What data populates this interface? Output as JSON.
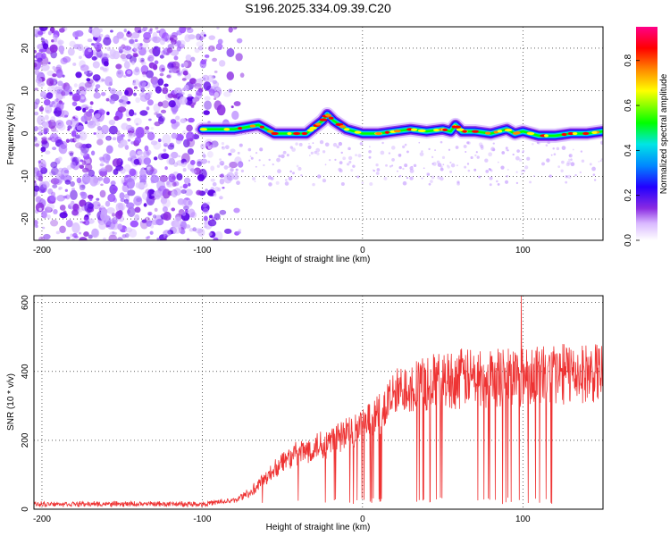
{
  "chart_data": [
    {
      "type": "heatmap",
      "title": "S196.2025.334.09.39.C20",
      "xlabel": "Height of straight line (km)",
      "ylabel": "Frequency (Hz)",
      "xlim": [
        -205,
        150
      ],
      "ylim": [
        -25,
        25
      ],
      "xticks": [
        -200,
        -100,
        0,
        100
      ],
      "yticks": [
        -20,
        -10,
        0,
        10,
        20
      ],
      "colorbar": {
        "label": "Normalized spectral amplitude",
        "range": [
          0,
          0.95
        ],
        "ticks": [
          0.0,
          0.2,
          0.4,
          0.6,
          0.8
        ],
        "colormap": [
          "#ffffff",
          "#d9b8ff",
          "#8a2be2",
          "#2200ff",
          "#0088ff",
          "#00e5e5",
          "#00ff00",
          "#ffff00",
          "#ff8800",
          "#ff0000",
          "#ff0088"
        ]
      },
      "ridge": {
        "x": [
          -100,
          -80,
          -65,
          -55,
          -45,
          -35,
          -30,
          -25,
          -22,
          -18,
          -10,
          0,
          10,
          20,
          30,
          40,
          50,
          55,
          58,
          62,
          70,
          80,
          90,
          95,
          100,
          110,
          120,
          130,
          140,
          150
        ],
        "freq": [
          1,
          1,
          2,
          0,
          0,
          0,
          1.5,
          3,
          4.5,
          3,
          1,
          0,
          0,
          0.5,
          1,
          0.5,
          1,
          0.5,
          2,
          0.5,
          0.5,
          0,
          1,
          0,
          0.5,
          -0.5,
          -0.5,
          0,
          0,
          0.5
        ]
      },
      "noise_region": {
        "x": [
          -205,
          -70
        ],
        "freq": [
          -25,
          25
        ]
      },
      "grid": true
    },
    {
      "type": "line",
      "title": "",
      "xlabel": "Height of straight line (km)",
      "ylabel": "SNR (10 * v/v)",
      "xlim": [
        -205,
        150
      ],
      "ylim": [
        0,
        620
      ],
      "xticks": [
        -200,
        -100,
        0,
        100
      ],
      "yticks": [
        0,
        200,
        400,
        600
      ],
      "color": "#ee3333",
      "trend": {
        "x": [
          -205,
          -100,
          -80,
          -70,
          -60,
          -50,
          -40,
          -30,
          -20,
          -10,
          0,
          10,
          20,
          30,
          40,
          50,
          60,
          80,
          100,
          120,
          150
        ],
        "y": [
          15,
          15,
          25,
          50,
          90,
          140,
          160,
          180,
          200,
          220,
          240,
          270,
          330,
          360,
          370,
          375,
          380,
          385,
          390,
          395,
          395
        ]
      },
      "spike_peak": {
        "x": 99,
        "y": 620
      },
      "grid": true
    }
  ]
}
